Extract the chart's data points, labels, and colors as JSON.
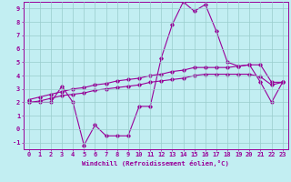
{
  "xlabel": "Windchill (Refroidissement éolien,°C)",
  "xlim": [
    -0.5,
    23.5
  ],
  "ylim": [
    -1.5,
    9.5
  ],
  "yticks": [
    -1,
    0,
    1,
    2,
    3,
    4,
    5,
    6,
    7,
    8,
    9
  ],
  "xticks": [
    0,
    1,
    2,
    3,
    4,
    5,
    6,
    7,
    8,
    9,
    10,
    11,
    12,
    13,
    14,
    15,
    16,
    17,
    18,
    19,
    20,
    21,
    22,
    23
  ],
  "background_color": "#c2eef2",
  "line_color": "#990099",
  "grid_color": "#99cccc",
  "series1_x": [
    0,
    1,
    2,
    3,
    4,
    5,
    6,
    7,
    8,
    9,
    10,
    11,
    12,
    13,
    14,
    15,
    16,
    17,
    18,
    19,
    20,
    21,
    22,
    23
  ],
  "series1_y": [
    2.0,
    2.0,
    2.0,
    3.2,
    2.0,
    -1.2,
    0.3,
    -0.5,
    -0.5,
    -0.5,
    1.7,
    1.7,
    5.3,
    7.8,
    9.5,
    8.8,
    9.3,
    7.3,
    5.0,
    4.7,
    4.8,
    3.5,
    2.0,
    3.5
  ],
  "series2_x": [
    0,
    1,
    2,
    3,
    4,
    5,
    6,
    7,
    8,
    9,
    10,
    11,
    12,
    13,
    14,
    15,
    16,
    17,
    18,
    19,
    20,
    21,
    22,
    23
  ],
  "series2_y": [
    2.2,
    2.4,
    2.6,
    2.8,
    3.0,
    3.1,
    3.3,
    3.4,
    3.6,
    3.7,
    3.8,
    4.0,
    4.1,
    4.3,
    4.4,
    4.6,
    4.6,
    4.6,
    4.6,
    4.7,
    4.8,
    4.8,
    3.5,
    3.5
  ],
  "series3_x": [
    0,
    1,
    2,
    3,
    4,
    5,
    6,
    7,
    8,
    9,
    10,
    11,
    12,
    13,
    14,
    15,
    16,
    17,
    18,
    19,
    20,
    21,
    22,
    23
  ],
  "series3_y": [
    2.0,
    2.1,
    2.3,
    2.5,
    2.6,
    2.7,
    2.9,
    3.0,
    3.1,
    3.2,
    3.3,
    3.5,
    3.6,
    3.7,
    3.8,
    4.0,
    4.1,
    4.1,
    4.1,
    4.1,
    4.1,
    3.9,
    3.3,
    3.5
  ]
}
